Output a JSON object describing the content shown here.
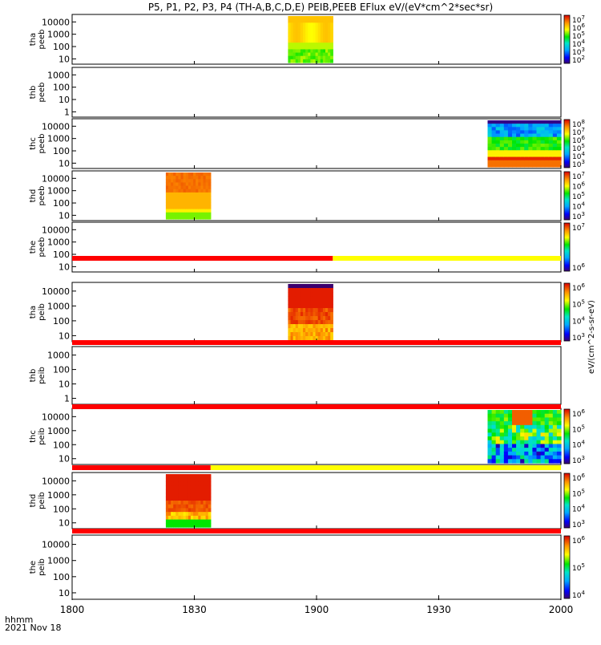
{
  "title": "P5, P1, P2, P3, P4 (TH-A,B,C,D,E) PEIB,PEEB EFlux eV/(eV*cm^2*sec*sr)",
  "x_footer": {
    "unit": "hhmm",
    "date": "2021 Nov 18"
  },
  "chart_data": {
    "type": "heatmap",
    "x_axis": {
      "tick_labels": [
        "1800",
        "1830",
        "1900",
        "1930",
        "2000"
      ],
      "range": [
        "1800",
        "2000"
      ]
    },
    "colorbar_unit": "eV/(cm^2-s-sr-eV)",
    "panels": [
      {
        "name": "tha peeb",
        "ylabel": [
          "tha",
          "peeb"
        ],
        "yticks": [
          "10000",
          "1000",
          "100",
          "10"
        ],
        "y_range": [
          5,
          30000
        ],
        "data_window": [
          "1853",
          "1904"
        ],
        "colorbar": {
          "labels": [
            "10^7",
            "10^6",
            "10^5",
            "10^4",
            "10^3",
            "10^2"
          ]
        }
      },
      {
        "name": "thb peeb",
        "ylabel": [
          "thb",
          "peeb"
        ],
        "yticks": [
          "1000",
          "100",
          "10",
          "1"
        ],
        "y_range": [
          0.5,
          3000
        ],
        "data_window": null,
        "colorbar": {
          "labels": []
        }
      },
      {
        "name": "thc peeb",
        "ylabel": [
          "thc",
          "peeb"
        ],
        "yticks": [
          "10000",
          "1000",
          "100",
          "10"
        ],
        "y_range": [
          5,
          30000
        ],
        "data_window": [
          "1942",
          "2000"
        ],
        "colorbar": {
          "labels": [
            "10^8",
            "10^7",
            "10^6",
            "10^5",
            "10^4",
            "10^3"
          ]
        }
      },
      {
        "name": "thd peeb",
        "ylabel": [
          "thd",
          "peeb"
        ],
        "yticks": [
          "10000",
          "1000",
          "100",
          "10"
        ],
        "y_range": [
          5,
          30000
        ],
        "data_window": [
          "1823",
          "1834"
        ],
        "colorbar": {
          "labels": [
            "10^7",
            "10^6",
            "10^5",
            "10^4",
            "10^3"
          ]
        }
      },
      {
        "name": "the peeb",
        "ylabel": [
          "the",
          "peeb"
        ],
        "yticks": [
          "10000",
          "1000",
          "100",
          "10"
        ],
        "y_range": [
          5,
          30000
        ],
        "data_window": null,
        "colorbar": {
          "labels": [
            "10^7",
            "10^6"
          ]
        }
      },
      {
        "name": "tha peib",
        "ylabel": [
          "tha",
          "peib"
        ],
        "yticks": [
          "10000",
          "1000",
          "100",
          "10"
        ],
        "y_range": [
          5,
          30000
        ],
        "data_window": [
          "1853",
          "1904"
        ],
        "colorbar": {
          "labels": [
            "10^6",
            "10^5",
            "10^4",
            "10^3"
          ]
        }
      },
      {
        "name": "thb peib",
        "ylabel": [
          "thb",
          "peib"
        ],
        "yticks": [
          "1000",
          "100",
          "10",
          "1"
        ],
        "y_range": [
          0.5,
          3000
        ],
        "data_window": null,
        "colorbar": {
          "labels": []
        }
      },
      {
        "name": "thc peib",
        "ylabel": [
          "thc",
          "peib"
        ],
        "yticks": [
          "10000",
          "1000",
          "100",
          "10"
        ],
        "y_range": [
          5,
          30000
        ],
        "data_window": [
          "1942",
          "2000"
        ],
        "colorbar": {
          "labels": [
            "10^6",
            "10^5",
            "10^4",
            "10^3"
          ]
        }
      },
      {
        "name": "thd peib",
        "ylabel": [
          "thd",
          "peib"
        ],
        "yticks": [
          "10000",
          "1000",
          "100",
          "10"
        ],
        "y_range": [
          5,
          30000
        ],
        "data_window": [
          "1823",
          "1834"
        ],
        "colorbar": {
          "labels": [
            "10^6",
            "10^5",
            "10^4",
            "10^3"
          ]
        }
      },
      {
        "name": "the peib",
        "ylabel": [
          "the",
          "peib"
        ],
        "yticks": [
          "10000",
          "1000",
          "100",
          "10"
        ],
        "y_range": [
          5,
          30000
        ],
        "data_window": null,
        "colorbar": {
          "labels": [
            "10^6",
            "10^5",
            "10^4"
          ]
        }
      }
    ],
    "status_bars": [
      {
        "after_panel": "the peeb",
        "segments": [
          {
            "from": "1800",
            "to": "1904",
            "color": "#ff0000"
          },
          {
            "from": "1904",
            "to": "2000",
            "color": "#ffff00"
          }
        ]
      },
      {
        "after_panel": "tha peib",
        "segments": [
          {
            "from": "1800",
            "to": "2000",
            "color": "#ff0000"
          }
        ]
      },
      {
        "after_panel": "thb peib",
        "segments": [
          {
            "from": "1800",
            "to": "2000",
            "color": "#ff0000"
          }
        ]
      },
      {
        "after_panel": "thc peib",
        "segments": [
          {
            "from": "1800",
            "to": "1834",
            "color": "#ff0000"
          },
          {
            "from": "1834",
            "to": "2000",
            "color": "#ffff00"
          }
        ]
      },
      {
        "after_panel": "thd peib",
        "segments": [
          {
            "from": "1800",
            "to": "2000",
            "color": "#ff0000"
          }
        ]
      }
    ]
  }
}
